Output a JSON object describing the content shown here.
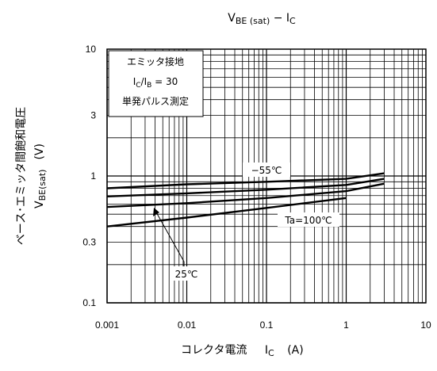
{
  "chart_data": {
    "type": "line",
    "title": {
      "main": "V",
      "sub": "BE (sat)",
      "rest": " − I",
      "sub2": "C"
    },
    "x_axis": {
      "label_text": "コレクタ電流",
      "label_symbol": "I",
      "label_symbol_sub": "C",
      "label_unit": "(A)",
      "scale": "log",
      "range": [
        0.001,
        10
      ],
      "ticks": [
        "0.001",
        "0.01",
        "0.1",
        "1",
        "10"
      ]
    },
    "y_axis": {
      "label_text": "ベース･エミッタ間飽和電圧",
      "label_symbol": "V",
      "label_symbol_sub": "BE(sat)",
      "label_unit": "(V)",
      "scale": "log",
      "range": [
        0.1,
        10
      ],
      "ticks": [
        "0.1",
        "0.3",
        "1",
        "3",
        "10"
      ]
    },
    "grid": true,
    "conditions_box": {
      "line1": "エミッタ接地",
      "line2_sym": "I",
      "line2_sub1": "C",
      "line2_mid": "/I",
      "line2_sub2": "B",
      "line2_rest": " = 30",
      "line3": "単発パルス測定"
    },
    "series": [
      {
        "name": "−55°C",
        "x": [
          0.001,
          0.01,
          0.1,
          1,
          3
        ],
        "y": [
          0.8,
          0.86,
          0.9,
          0.95,
          1.05
        ]
      },
      {
        "name": "25°C",
        "x": [
          0.001,
          0.01,
          0.1,
          1,
          3
        ],
        "y": [
          0.69,
          0.73,
          0.78,
          0.85,
          0.95
        ]
      },
      {
        "name": "Ta=100°C",
        "x": [
          0.001,
          0.01,
          0.1,
          1,
          3
        ],
        "y": [
          0.57,
          0.61,
          0.67,
          0.76,
          0.87
        ]
      }
    ],
    "annotations": [
      {
        "text": "−55℃",
        "series": 0
      },
      {
        "text": "Ta=100℃",
        "series": 2
      },
      {
        "text": "25℃",
        "series": 1
      }
    ],
    "extra_line": {
      "x": [
        0.001,
        0.01,
        0.1,
        1
      ],
      "y": [
        0.4,
        0.47,
        0.56,
        0.67
      ]
    }
  }
}
